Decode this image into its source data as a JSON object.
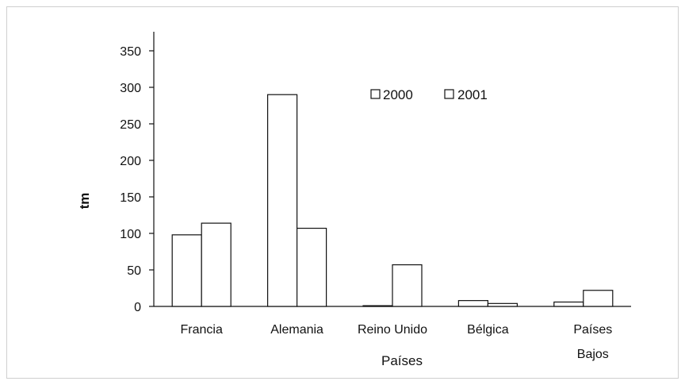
{
  "chart_data": {
    "type": "bar",
    "title": "",
    "xlabel": "Países",
    "ylabel": "tm",
    "ylim": [
      0,
      350
    ],
    "yticks": [
      0,
      50,
      100,
      150,
      200,
      250,
      300,
      350
    ],
    "categories": [
      "Francia",
      "Alemania",
      "Reino Unido",
      "Bélgica",
      "Países Bajos"
    ],
    "series": [
      {
        "name": "2000",
        "values": [
          98,
          290,
          1,
          8,
          6
        ]
      },
      {
        "name": "2001",
        "values": [
          114,
          107,
          57,
          4,
          22
        ]
      }
    ],
    "legend_position": "top-right",
    "grid": false
  },
  "colors": {
    "bar_fill": "#ffffff",
    "bar_stroke": "#111111",
    "axis": "#111111"
  }
}
